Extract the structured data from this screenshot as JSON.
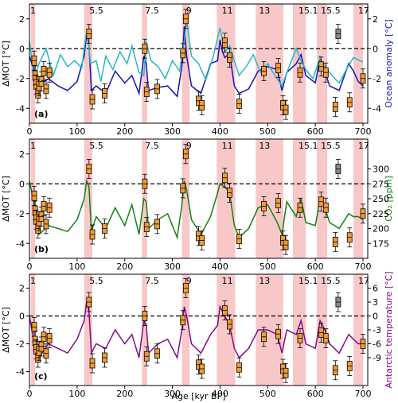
{
  "figure": {
    "xlabel": "Age [kyr BP]",
    "x_ticks": [
      0,
      100,
      200,
      300,
      400,
      500,
      600,
      700
    ],
    "xlim": [
      0,
      710
    ],
    "mis_labels": [
      "1",
      "5.5",
      "7.5",
      "9",
      "11",
      "13",
      "15.1",
      "15.5",
      "17"
    ],
    "colors": {
      "mis_band": "#f8c8c8",
      "box_fill": "#f39c34",
      "box_outlier_fill": "#8a8a8a",
      "ocean_series_1": "#1515b8",
      "ocean_series_2": "#27b8c4",
      "co2_series": "#138013",
      "antarctic_series": "#7f0d86"
    }
  },
  "chart_data": [
    {
      "panel": "(a)",
      "type": "line",
      "ylabel_left": "ΔMOT [°C]",
      "ylabel_right": "Ocean anomaly [°C]",
      "left_ylim": [
        -5,
        3
      ],
      "left_ticks": [
        -4,
        -2,
        0,
        2
      ],
      "right_ticks": [
        -4,
        -2,
        0,
        2
      ],
      "series": [
        {
          "values_x": [
            0,
            10,
            20,
            40,
            60,
            80,
            100,
            115,
            120,
            125,
            130,
            140,
            160,
            180,
            200,
            215,
            230,
            240,
            245,
            250,
            270,
            290,
            310,
            320,
            325,
            330,
            340,
            360,
            380,
            395,
            400,
            405,
            410,
            420,
            430,
            440,
            460,
            480,
            500,
            520,
            530,
            540,
            560,
            570,
            580,
            600,
            610,
            620,
            630,
            650,
            670,
            680,
            690,
            700
          ],
          "values_y": [
            -0.5,
            -1.5,
            -2.5,
            -2.0,
            -2.5,
            -2.8,
            -2.2,
            -0.5,
            1.0,
            0.2,
            -2.8,
            -2.5,
            -3.0,
            -1.5,
            -2.3,
            -1.8,
            -3.0,
            -0.5,
            -1.0,
            -2.8,
            -2.6,
            -2.5,
            -3.2,
            -1.2,
            1.5,
            -0.5,
            -2.5,
            -3.0,
            -1.0,
            -0.8,
            0.6,
            -0.2,
            -0.6,
            -0.3,
            -2.5,
            -3.0,
            -2.7,
            -1.5,
            -1.2,
            -1.4,
            -2.8,
            -1.6,
            -1.0,
            -0.4,
            -1.8,
            -2.3,
            -0.6,
            -1.5,
            -2.5,
            -2.8,
            -1.0,
            -1.5,
            -2.2,
            -2.5
          ]
        },
        {
          "values_x": [
            0,
            10,
            20,
            35,
            50,
            65,
            80,
            95,
            110,
            118,
            122,
            128,
            140,
            150,
            160,
            175,
            190,
            205,
            215,
            230,
            240,
            245,
            255,
            270,
            285,
            300,
            315,
            325,
            330,
            340,
            355,
            370,
            385,
            400,
            410,
            420,
            430,
            440,
            455,
            470,
            485,
            500,
            515,
            530,
            545,
            560,
            570,
            580,
            595,
            610,
            620,
            635,
            650,
            665,
            680,
            700
          ],
          "values_y": [
            0.5,
            -2.0,
            -1.0,
            0.0,
            -1.8,
            -0.4,
            -1.2,
            -0.8,
            -1.3,
            0.8,
            1.2,
            -1.0,
            -0.8,
            -2.2,
            -0.5,
            -1.4,
            -0.2,
            -1.0,
            0.2,
            -1.6,
            -1.8,
            0.5,
            -0.8,
            -1.2,
            -2.0,
            -0.8,
            -1.5,
            0.5,
            2.0,
            -0.5,
            -1.0,
            -2.1,
            -0.6,
            1.4,
            -0.2,
            0.2,
            -0.8,
            -1.8,
            -1.2,
            -0.4,
            -1.6,
            -1.0,
            -1.8,
            -2.5,
            -1.2,
            0.0,
            -0.8,
            -1.4,
            -2.0,
            -0.6,
            -1.2,
            -1.8,
            -2.3,
            -1.4,
            -0.6,
            -0.9
          ]
        }
      ]
    },
    {
      "panel": "(b)",
      "type": "line",
      "ylabel_left": "ΔMOT [°C]",
      "ylabel_right": "CO₂ [ppm]",
      "left_ylim": [
        -5,
        3
      ],
      "left_ticks": [
        -4,
        -2,
        0,
        2
      ],
      "right_ticks": [
        175,
        200,
        225,
        250,
        275,
        300
      ],
      "series": [
        {
          "name": "CO₂",
          "values_x": [
            0,
            10,
            20,
            40,
            60,
            80,
            100,
            115,
            120,
            125,
            130,
            140,
            160,
            180,
            200,
            215,
            230,
            240,
            245,
            250,
            270,
            290,
            310,
            320,
            325,
            330,
            340,
            360,
            380,
            395,
            400,
            405,
            410,
            420,
            430,
            440,
            460,
            480,
            500,
            520,
            530,
            540,
            560,
            570,
            580,
            600,
            610,
            620,
            630,
            650,
            670,
            680,
            690,
            700
          ],
          "values_y": [
            280,
            240,
            190,
            205,
            200,
            195,
            215,
            250,
            280,
            270,
            195,
            220,
            200,
            235,
            205,
            240,
            190,
            250,
            245,
            200,
            215,
            225,
            185,
            240,
            280,
            265,
            215,
            190,
            220,
            260,
            275,
            272,
            270,
            260,
            205,
            185,
            200,
            235,
            240,
            210,
            190,
            245,
            220,
            250,
            210,
            205,
            250,
            235,
            210,
            200,
            225,
            220,
            220,
            215
          ]
        }
      ]
    },
    {
      "panel": "(c)",
      "type": "line",
      "ylabel_left": "ΔMOT [°C]",
      "ylabel_right": "Antarctic temperature [°C]",
      "left_ylim": [
        -5,
        3
      ],
      "left_ticks": [
        -4,
        -2,
        0,
        2
      ],
      "right_ticks": [
        -9,
        -6,
        -3,
        0,
        3,
        6
      ],
      "series": [
        {
          "name": "Antarctic temperature",
          "values_x": [
            0,
            10,
            20,
            40,
            60,
            80,
            100,
            115,
            120,
            125,
            130,
            140,
            160,
            180,
            200,
            215,
            230,
            240,
            245,
            250,
            270,
            290,
            310,
            320,
            325,
            330,
            340,
            360,
            380,
            395,
            400,
            405,
            410,
            420,
            430,
            440,
            460,
            480,
            500,
            520,
            530,
            540,
            560,
            570,
            580,
            600,
            610,
            620,
            630,
            650,
            670,
            680,
            690,
            700
          ],
          "values_y": [
            0,
            -6,
            -9,
            -6,
            -7,
            -8,
            -5,
            -1,
            3,
            1,
            -8,
            -6,
            -7,
            -3,
            -6,
            -4,
            -9,
            -1,
            -2,
            -8,
            -6,
            -5,
            -9,
            -3,
            2,
            0,
            -6,
            -8,
            -4,
            -2,
            2,
            1,
            0,
            -2,
            -7,
            -9,
            -7,
            -3,
            -3,
            -4,
            -8,
            -3,
            -4,
            -1,
            -6,
            -7,
            -1,
            -3,
            -6,
            -8,
            -4,
            -5,
            -6,
            -6
          ]
        }
      ]
    }
  ],
  "proxy_boxes": [
    {
      "x": 10,
      "y": -0.8
    },
    {
      "x": 12,
      "y": -1.8
    },
    {
      "x": 14,
      "y": -2.4
    },
    {
      "x": 18,
      "y": -3.0
    },
    {
      "x": 20,
      "y": -2.5
    },
    {
      "x": 25,
      "y": -2.2
    },
    {
      "x": 30,
      "y": -1.5
    },
    {
      "x": 35,
      "y": -2.7
    },
    {
      "x": 42,
      "y": -1.6
    },
    {
      "x": 125,
      "y": 1.0
    },
    {
      "x": 132,
      "y": -3.4
    },
    {
      "x": 158,
      "y": -3.0
    },
    {
      "x": 242,
      "y": 0.0
    },
    {
      "x": 246,
      "y": -2.9
    },
    {
      "x": 268,
      "y": -2.7
    },
    {
      "x": 322,
      "y": -0.3
    },
    {
      "x": 328,
      "y": 2.0
    },
    {
      "x": 355,
      "y": -3.5
    },
    {
      "x": 362,
      "y": -3.8
    },
    {
      "x": 410,
      "y": 0.4
    },
    {
      "x": 420,
      "y": -0.6
    },
    {
      "x": 440,
      "y": -3.7
    },
    {
      "x": 492,
      "y": -1.5
    },
    {
      "x": 522,
      "y": -1.3
    },
    {
      "x": 532,
      "y": -3.8
    },
    {
      "x": 538,
      "y": -4.1
    },
    {
      "x": 568,
      "y": -1.6
    },
    {
      "x": 612,
      "y": -1.2
    },
    {
      "x": 622,
      "y": -1.6
    },
    {
      "x": 642,
      "y": -3.9
    },
    {
      "x": 672,
      "y": -3.6
    },
    {
      "x": 700,
      "y": -2.0
    },
    {
      "x": 648,
      "y": 1.0,
      "outlier": true
    }
  ]
}
